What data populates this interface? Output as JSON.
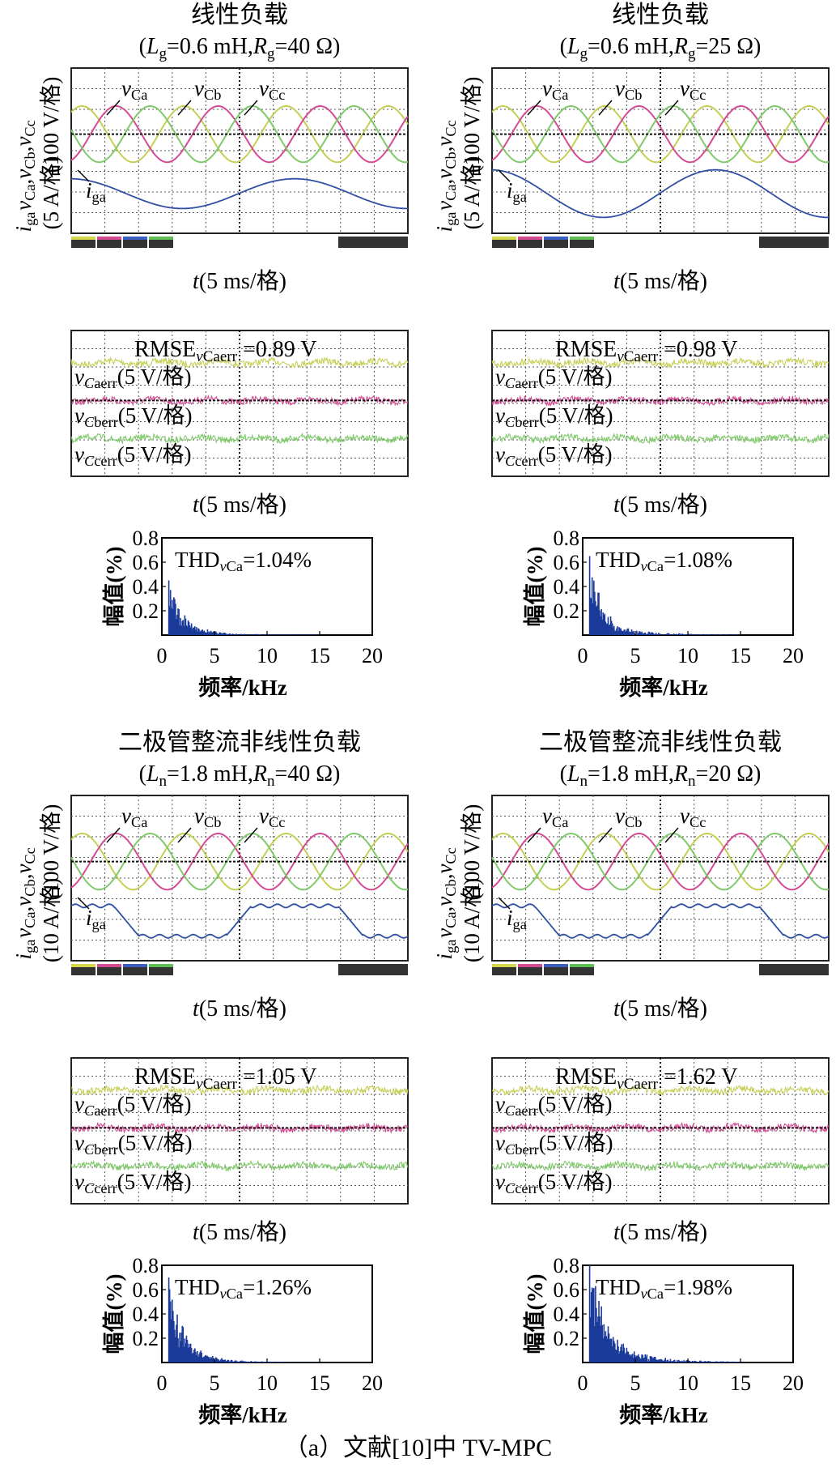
{
  "caption": "（a）文献[10]中 TV-MPC",
  "colors": {
    "a": "#c6cf55",
    "b": "#d44a93",
    "c": "#7fca6a",
    "current": "#2f4fa3",
    "spectrum": "#1b3a9a"
  },
  "scope_labels": {
    "v_a": "v",
    "v_a_sub": "Ca",
    "v_b": "v",
    "v_b_sub": "Cb",
    "v_c": "v",
    "v_c_sub": "Cc",
    "i": "i",
    "i_sub": "ga"
  },
  "panels": [
    {
      "title": "线性负载",
      "params": "(L_g=0.6 mH,R_g=40 Ω)",
      "ylabel_top": "v_Ca,v_Cb,v_Cc (100 V/格)",
      "ylabel_bottom": "i_ga (5 A/格)",
      "ylabel_line1": "v",
      "ylabel_line2": "i",
      "time_label": "t(5 ms/格)",
      "current_shape": "sine",
      "current_amplitude": 0.5,
      "rmse": {
        "label": "RMSE",
        "sub": "vCaerr",
        "value": "=0.89 V"
      },
      "err_labels": [
        "v_Caerr(5 V/格)",
        "v_Cberr(5 V/格)",
        "v_Ccerr(5 V/格)"
      ],
      "thd": {
        "label": "THD",
        "sub": "vCa",
        "value": "=1.04%"
      },
      "spectrum_ylabel": "幅值(%)",
      "spectrum_xlabel": "频率/kHz",
      "spectrum_yticks": [
        "0.8",
        "0.6",
        "0.4",
        "0.2"
      ],
      "spectrum_xticks": [
        "0",
        "5",
        "10",
        "15",
        "20"
      ],
      "chart_data": {
        "type": "bar",
        "xlabel": "频率/kHz",
        "ylabel": "幅值(%)",
        "xlim": [
          0,
          20
        ],
        "ylim": [
          0,
          0.8
        ],
        "peak": 0.45,
        "decay": 0.13,
        "noise": 0.05
      }
    },
    {
      "title": "线性负载",
      "params": "(L_g=0.6 mH,R_g=25 Ω)",
      "ylabel_top": "v_Ca,v_Cb,v_Cc (100 V/格)",
      "ylabel_bottom": "i_ga (5 A/格)",
      "time_label": "t(5 ms/格)",
      "current_shape": "sine",
      "current_amplitude": 0.95,
      "rmse": {
        "label": "RMSE",
        "sub": "vCaerr",
        "value": "=0.98 V"
      },
      "err_labels": [
        "v_Caerr(5 V/格)",
        "v_Cberr(5 V/格)",
        "v_Ccerr(5 V/格)"
      ],
      "thd": {
        "label": "THD",
        "sub": "vCa",
        "value": "=1.08%"
      },
      "spectrum_ylabel": "幅值(%)",
      "spectrum_xlabel": "频率/kHz",
      "spectrum_yticks": [
        "0.8",
        "0.6",
        "0.4",
        "0.2"
      ],
      "spectrum_xticks": [
        "0",
        "5",
        "10",
        "15",
        "20"
      ],
      "chart_data": {
        "type": "bar",
        "xlabel": "频率/kHz",
        "ylabel": "幅值(%)",
        "xlim": [
          0,
          20
        ],
        "ylim": [
          0,
          0.8
        ],
        "peak": 0.65,
        "decay": 0.11,
        "noise": 0.09
      }
    },
    {
      "title": "二极管整流非线性负载",
      "params": "(L_n=1.8 mH,R_n=40 Ω)",
      "ylabel_top": "v_Ca,v_Cb,v_Cc (100 V/格)",
      "ylabel_bottom": "i_ga (10 A/格)",
      "time_label": "t(5 ms/格)",
      "current_shape": "rectified",
      "current_amplitude": 0.6,
      "rmse": {
        "label": "RMSE",
        "sub": "vCaerr",
        "value": "=1.05 V"
      },
      "err_labels": [
        "v_Caerr(5 V/格)",
        "v_Cberr(5 V/格)",
        "v_Ccerr(5 V/格)"
      ],
      "thd": {
        "label": "THD",
        "sub": "vCa",
        "value": "=1.26%"
      },
      "spectrum_ylabel": "幅值(%)",
      "spectrum_xlabel": "频率/kHz",
      "spectrum_yticks": [
        "0.8",
        "0.6",
        "0.4",
        "0.2"
      ],
      "spectrum_xticks": [
        "0",
        "5",
        "10",
        "15",
        "20"
      ],
      "chart_data": {
        "type": "bar",
        "xlabel": "频率/kHz",
        "ylabel": "幅值(%)",
        "xlim": [
          0,
          20
        ],
        "ylim": [
          0,
          0.8
        ],
        "peak": 0.7,
        "decay": 0.14,
        "noise": 0.06
      }
    },
    {
      "title": "二极管整流非线性负载",
      "params": "(L_n=1.8 mH,R_n=20 Ω)",
      "ylabel_top": "v_Ca,v_Cb,v_Cc (100 V/格)",
      "ylabel_bottom": "i_ga (10 A/格)",
      "time_label": "t(5 ms/格)",
      "current_shape": "rectified",
      "current_amplitude": 0.6,
      "rmse": {
        "label": "RMSE",
        "sub": "vCaerr",
        "value": "=1.62 V"
      },
      "err_labels": [
        "v_Caerr(5 V/格)",
        "v_Cberr(5 V/格)",
        "v_Ccerr(5 V/格)"
      ],
      "thd": {
        "label": "THD",
        "sub": "vCa",
        "value": "=1.98%"
      },
      "spectrum_ylabel": "幅值(%)",
      "spectrum_xlabel": "频率/kHz",
      "spectrum_yticks": [
        "0.8",
        "0.6",
        "0.4",
        "0.2"
      ],
      "spectrum_xticks": [
        "0",
        "5",
        "10",
        "15",
        "20"
      ],
      "chart_data": {
        "type": "bar",
        "xlabel": "频率/kHz",
        "ylabel": "幅值(%)",
        "xlim": [
          0,
          20
        ],
        "ylim": [
          0,
          0.8
        ],
        "peak": 0.8,
        "decay": 0.16,
        "noise": 0.15
      }
    }
  ]
}
